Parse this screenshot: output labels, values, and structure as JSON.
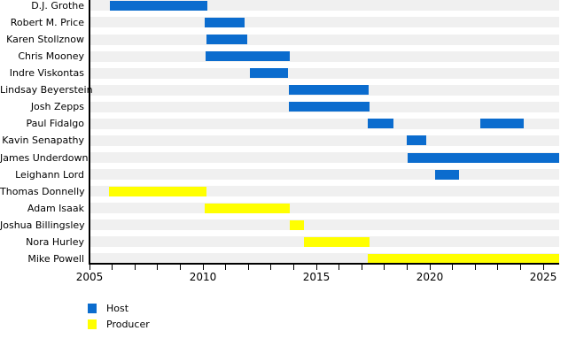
{
  "chart_data": {
    "type": "gantt",
    "description": "Timeline of podcast hosts and producers",
    "x_axis": {
      "min": 2005,
      "max": 2025.7,
      "tick_interval_years": 1,
      "labeled_ticks": [
        2005,
        2010,
        2015,
        2020,
        2025
      ],
      "tick_labels": [
        "2005",
        "2010",
        "2015",
        "2020",
        "2025"
      ]
    },
    "colors": {
      "host": "#0b6cce",
      "producer": "#ffff00",
      "row_band": "#f0f0f0",
      "axis": "#000000",
      "background": "#ffffff"
    },
    "legend": {
      "position": "bottom-left",
      "items": [
        {
          "label": "Host",
          "color": "#0b6cce",
          "role": "host"
        },
        {
          "label": "Producer",
          "color": "#ffff00",
          "role": "producer"
        }
      ]
    },
    "rows": [
      {
        "name": "D.J. Grothe",
        "role": "host",
        "segments": [
          [
            2005.88,
            2010.21
          ]
        ]
      },
      {
        "name": "Robert M. Price",
        "role": "host",
        "segments": [
          [
            2010.06,
            2011.84
          ]
        ]
      },
      {
        "name": "Karen Stollznow",
        "role": "host",
        "segments": [
          [
            2010.14,
            2011.97
          ]
        ]
      },
      {
        "name": "Chris Mooney",
        "role": "host",
        "segments": [
          [
            2010.11,
            2013.84
          ]
        ]
      },
      {
        "name": "Indre Viskontas",
        "role": "host",
        "segments": [
          [
            2012.06,
            2013.76
          ]
        ]
      },
      {
        "name": "Lindsay Beyerstein",
        "role": "host",
        "segments": [
          [
            2013.8,
            2017.31
          ]
        ]
      },
      {
        "name": "Josh Zepps",
        "role": "host",
        "segments": [
          [
            2013.8,
            2017.35
          ]
        ]
      },
      {
        "name": "Paul Fidalgo",
        "role": "host",
        "segments": [
          [
            2017.25,
            2018.4
          ],
          [
            2022.21,
            2024.14
          ]
        ]
      },
      {
        "name": "Kavin Senapathy",
        "role": "host",
        "segments": [
          [
            2018.98,
            2019.86
          ]
        ]
      },
      {
        "name": "James Underdown",
        "role": "host",
        "segments": [
          [
            2019.02,
            2025.69
          ]
        ]
      },
      {
        "name": "Leighann Lord",
        "role": "host",
        "segments": [
          [
            2020.25,
            2021.29
          ]
        ]
      },
      {
        "name": "Thomas Donnelly",
        "role": "producer",
        "segments": [
          [
            2005.87,
            2010.14
          ]
        ]
      },
      {
        "name": "Adam Isaak",
        "role": "producer",
        "segments": [
          [
            2010.08,
            2013.81
          ]
        ]
      },
      {
        "name": "Joshua Billingsley",
        "role": "producer",
        "segments": [
          [
            2013.84,
            2014.47
          ]
        ]
      },
      {
        "name": "Nora Hurley",
        "role": "producer",
        "segments": [
          [
            2014.45,
            2017.35
          ]
        ]
      },
      {
        "name": "Mike Powell",
        "role": "producer",
        "segments": [
          [
            2017.25,
            2025.69
          ]
        ]
      }
    ]
  }
}
